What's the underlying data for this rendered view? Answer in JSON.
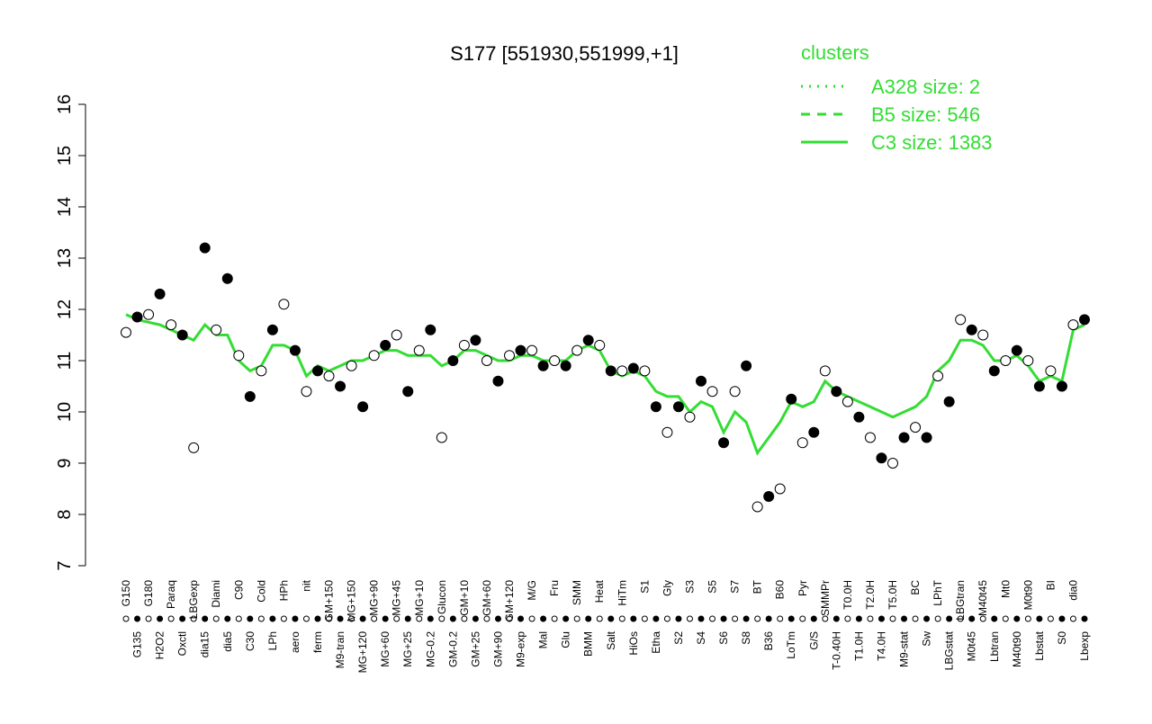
{
  "chart_data": {
    "type": "line",
    "title": "S177 [551930,551999,+1]",
    "categories": [
      "G150",
      "G135",
      "G180",
      "H2O2",
      "Paraq",
      "Oxctl",
      "LBGexp",
      "dia15",
      "Diami",
      "dia5",
      "C90",
      "C30",
      "Cold",
      "LPh",
      "HPh",
      "aero",
      "nit",
      "ferm",
      "GM+150",
      "M9-tran",
      "MG+150",
      "MG+120",
      "MG+90",
      "MG+60",
      "MG+45",
      "MG+25",
      "MG+10",
      "MG-0.2",
      "Glucon",
      "GM-0.2",
      "GM+10",
      "GM+25",
      "GM+60",
      "GM+90",
      "GM+120",
      "M9-exp",
      "M/G",
      "Mal",
      "Fru",
      "Glu",
      "SMM",
      "BMM",
      "Heat",
      "Salt",
      "HiTm",
      "HiOs",
      "S1",
      "Etha",
      "Gly",
      "S2",
      "S3",
      "S4",
      "S5",
      "S6",
      "S7",
      "S8",
      "BT",
      "B36",
      "B60",
      "LoTm",
      "Pyr",
      "G/S",
      "SMMPr",
      "T-0.40H",
      "T0.0H",
      "T1.0H",
      "T2.0H",
      "T4.0H",
      "T5.0H",
      "M9-stat",
      "BC",
      "Sw",
      "LPhT",
      "LBGstat",
      "LBGtran",
      "M0t45",
      "M40t45",
      "Lbtran",
      "Mt0",
      "M40t90",
      "M0t90",
      "Lbstat",
      "BI",
      "S0",
      "dia0",
      "Lbexp"
    ],
    "points": [
      11.55,
      11.85,
      11.9,
      12.3,
      11.7,
      11.5,
      9.3,
      13.2,
      11.6,
      12.6,
      11.1,
      10.3,
      10.8,
      11.6,
      12.1,
      11.2,
      10.4,
      10.8,
      10.7,
      10.5,
      10.9,
      10.1,
      11.1,
      11.3,
      11.5,
      10.4,
      11.2,
      11.6,
      9.5,
      11.0,
      11.3,
      11.4,
      11.0,
      10.6,
      11.1,
      11.2,
      11.2,
      10.9,
      11.0,
      10.9,
      11.2,
      11.4,
      11.3,
      10.8,
      10.8,
      10.85,
      10.8,
      10.1,
      9.6,
      10.1,
      9.9,
      10.6,
      10.4,
      9.4,
      10.4,
      10.9,
      8.15,
      8.35,
      8.5,
      10.25,
      9.4,
      9.6,
      10.8,
      10.4,
      10.2,
      9.9,
      9.5,
      9.1,
      9.0,
      9.5,
      9.7,
      9.5,
      10.7,
      10.2,
      11.8,
      11.6,
      11.5,
      10.8,
      11.0,
      11.2,
      11.0,
      10.5,
      10.8,
      10.5,
      11.7,
      11.8
    ],
    "series": [
      {
        "name": "A328 size: 2",
        "style": "dotted",
        "color": "#33dd33"
      },
      {
        "name": "B5 size: 546",
        "style": "dashed",
        "color": "#33dd33"
      },
      {
        "name": "C3 size: 1383",
        "style": "solid",
        "color": "#33dd33",
        "values": [
          11.9,
          11.8,
          11.75,
          11.7,
          11.6,
          11.5,
          11.4,
          11.7,
          11.5,
          11.5,
          11.0,
          10.8,
          10.9,
          11.3,
          11.3,
          11.2,
          10.7,
          10.9,
          10.8,
          10.9,
          11.0,
          11.0,
          11.1,
          11.2,
          11.2,
          11.1,
          11.1,
          11.1,
          10.9,
          11.0,
          11.2,
          11.2,
          11.1,
          11.0,
          11.0,
          11.1,
          11.1,
          11.0,
          11.0,
          11.0,
          11.2,
          11.3,
          11.2,
          10.8,
          10.7,
          10.8,
          10.7,
          10.4,
          10.3,
          10.3,
          10.0,
          10.2,
          10.1,
          9.6,
          10.0,
          9.8,
          9.2,
          9.5,
          9.8,
          10.2,
          10.1,
          10.2,
          10.6,
          10.4,
          10.3,
          10.2,
          10.1,
          10.0,
          9.9,
          10.0,
          10.1,
          10.3,
          10.8,
          11.0,
          11.4,
          11.4,
          11.3,
          11.0,
          11.0,
          11.1,
          10.9,
          10.6,
          10.7,
          10.6,
          11.6,
          11.7
        ]
      }
    ],
    "legend_title": "clusters",
    "ylim": [
      7,
      16
    ],
    "yticks": [
      7,
      8,
      9,
      10,
      11,
      12,
      13,
      14,
      15,
      16
    ]
  }
}
